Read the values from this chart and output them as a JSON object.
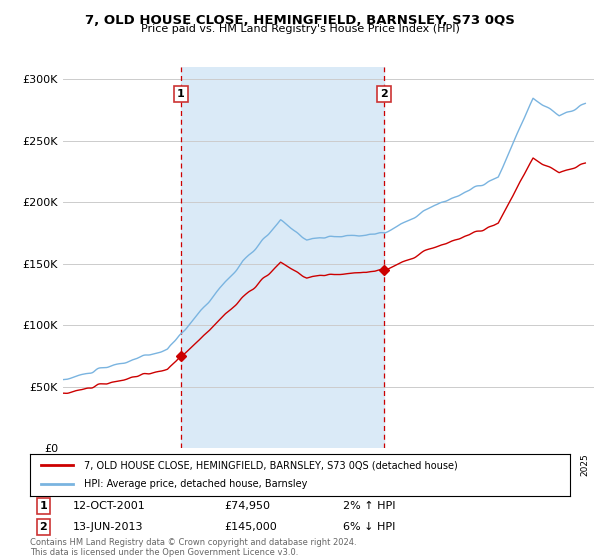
{
  "title": "7, OLD HOUSE CLOSE, HEMINGFIELD, BARNSLEY, S73 0QS",
  "subtitle": "Price paid vs. HM Land Registry's House Price Index (HPI)",
  "ylim": [
    0,
    310000
  ],
  "yticks": [
    0,
    50000,
    100000,
    150000,
    200000,
    250000,
    300000
  ],
  "ytick_labels": [
    "£0",
    "£50K",
    "£100K",
    "£150K",
    "£200K",
    "£250K",
    "£300K"
  ],
  "x_start_year": 1995,
  "x_end_year": 2025,
  "property_color": "#cc0000",
  "hpi_color": "#7ab4e0",
  "hpi_fill_color": "#daeaf7",
  "vline_color": "#cc0000",
  "transaction1_year": 2001.78,
  "transaction1_price": 74950,
  "transaction2_year": 2013.44,
  "transaction2_price": 145000,
  "legend_label1": "7, OLD HOUSE CLOSE, HEMINGFIELD, BARNSLEY, S73 0QS (detached house)",
  "legend_label2": "HPI: Average price, detached house, Barnsley",
  "annotation1_label": "1",
  "annotation1_date": "12-OCT-2001",
  "annotation1_price": "£74,950",
  "annotation1_hpi": "2% ↑ HPI",
  "annotation2_label": "2",
  "annotation2_date": "13-JUN-2013",
  "annotation2_price": "£145,000",
  "annotation2_hpi": "6% ↓ HPI",
  "footer": "Contains HM Land Registry data © Crown copyright and database right 2024.\nThis data is licensed under the Open Government Licence v3.0.",
  "background_color": "#ffffff",
  "grid_color": "#cccccc"
}
